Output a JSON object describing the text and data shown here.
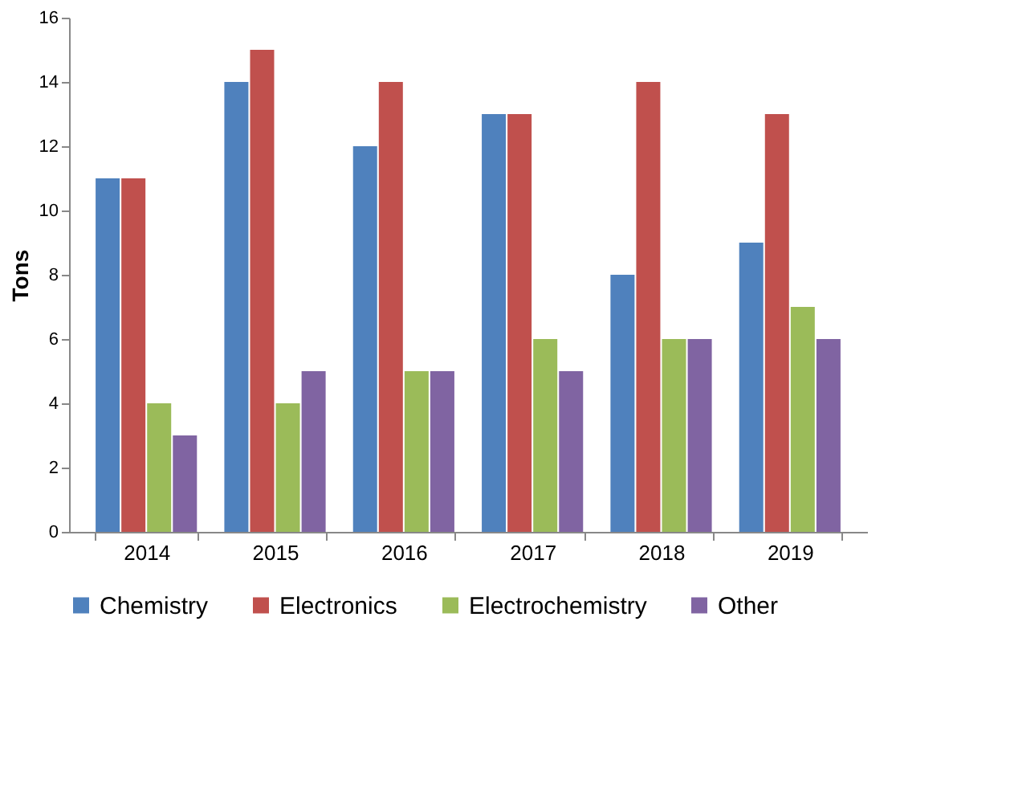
{
  "chart_data": {
    "type": "bar",
    "ylabel": "Tons",
    "categories": [
      "2014",
      "2015",
      "2016",
      "2017",
      "2018",
      "2019"
    ],
    "series": [
      {
        "name": "Chemistry",
        "color": "#4f81bd",
        "values": [
          11,
          14,
          12,
          13,
          8,
          9
        ]
      },
      {
        "name": "Electronics",
        "color": "#c0504d",
        "values": [
          11,
          15,
          14,
          13,
          14,
          13
        ]
      },
      {
        "name": "Electrochemistry",
        "color": "#9bbb59",
        "values": [
          4,
          4,
          5,
          6,
          6,
          7
        ]
      },
      {
        "name": "Other",
        "color": "#8064a2",
        "values": [
          3,
          5,
          5,
          5,
          6,
          6
        ]
      }
    ],
    "ylim": [
      0,
      16
    ],
    "yticks": [
      0,
      2,
      4,
      6,
      8,
      10,
      12,
      14,
      16
    ],
    "grid": false,
    "legend": "bottom"
  }
}
